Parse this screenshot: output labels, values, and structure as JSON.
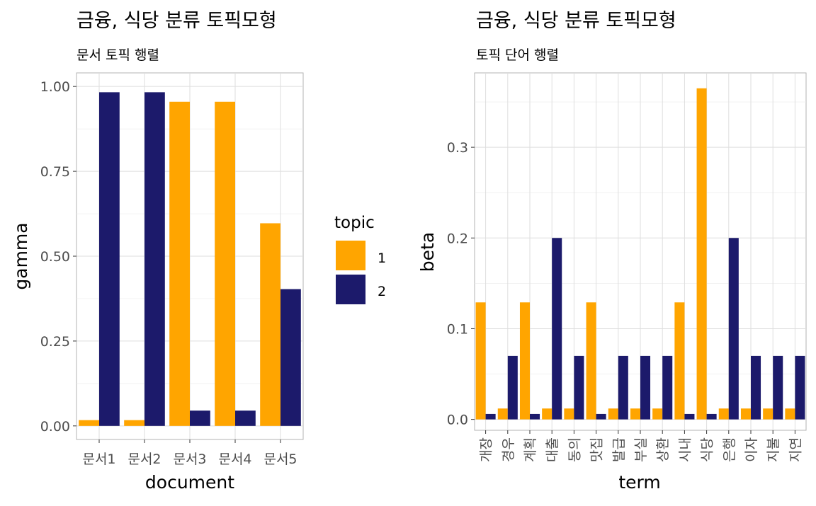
{
  "chart_data": [
    {
      "type": "bar",
      "title": "금융, 식당 분류 토픽모형",
      "subtitle": "문서 토픽 행렬",
      "xlabel": "document",
      "ylabel": "gamma",
      "categories": [
        "문서1",
        "문서2",
        "문서3",
        "문서4",
        "문서5"
      ],
      "series": [
        {
          "name": "1",
          "color": "#FFA500",
          "values": [
            0.017,
            0.017,
            0.955,
            0.955,
            0.597
          ]
        },
        {
          "name": "2",
          "color": "#1C1A6B",
          "values": [
            0.983,
            0.983,
            0.045,
            0.045,
            0.403
          ]
        }
      ],
      "ylim": [
        -0.04,
        1.04
      ],
      "yticks": [
        0,
        0.25,
        0.5,
        0.75,
        1.0
      ],
      "ytick_labels": [
        "0.00",
        "0.25",
        "0.50",
        "0.75",
        "1.00"
      ],
      "grid": true,
      "legend": {
        "title": "topic",
        "entries": [
          "1",
          "2"
        ],
        "position": "right"
      }
    },
    {
      "type": "bar",
      "title": "금융, 식당 분류 토픽모형",
      "subtitle": "토픽 단어 행렬",
      "xlabel": "term",
      "ylabel": "beta",
      "categories": [
        "개장",
        "경우",
        "계획",
        "대출",
        "동의",
        "맛집",
        "발급",
        "부실",
        "상환",
        "시내",
        "식당",
        "은행",
        "이자",
        "지불",
        "지연"
      ],
      "series": [
        {
          "name": "1",
          "color": "#FFA500",
          "values": [
            0.129,
            0.012,
            0.129,
            0.012,
            0.012,
            0.129,
            0.012,
            0.012,
            0.012,
            0.129,
            0.365,
            0.012,
            0.012,
            0.012,
            0.012
          ]
        },
        {
          "name": "2",
          "color": "#1C1A6B",
          "values": [
            0.006,
            0.07,
            0.006,
            0.2,
            0.07,
            0.006,
            0.07,
            0.07,
            0.07,
            0.006,
            0.006,
            0.2,
            0.07,
            0.07,
            0.07
          ]
        }
      ],
      "ylim": [
        -0.012,
        0.382
      ],
      "yticks": [
        0,
        0.1,
        0.2,
        0.3
      ],
      "ytick_labels": [
        "0.0",
        "0.1",
        "0.2",
        "0.3"
      ],
      "grid": true
    }
  ]
}
